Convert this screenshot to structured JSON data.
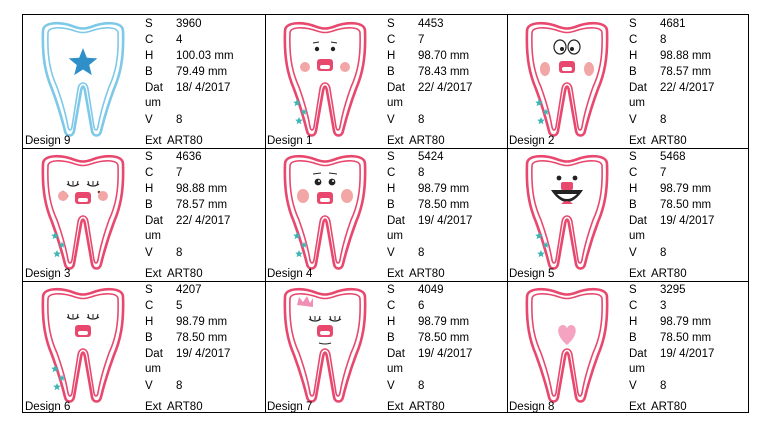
{
  "designs": [
    {
      "name": "Design 9",
      "S": "3960",
      "C": "4",
      "H": "100.03 mm",
      "B": "79.49 mm",
      "Datum": "18/ 4/2017",
      "V": "8",
      "Ext": "ART80",
      "outline": "#7ec8e8",
      "motif": "star"
    },
    {
      "name": "Design 1",
      "S": "4453",
      "C": "7",
      "H": "98.70 mm",
      "B": "78.43 mm",
      "Datum": "22/ 4/2017",
      "V": "8",
      "Ext": "ART80",
      "outline": "#e8486e",
      "motif": "face-open-eyes"
    },
    {
      "name": "Design 2",
      "S": "4681",
      "C": "8",
      "H": "98.88 mm",
      "B": "78.57 mm",
      "Datum": "22/ 4/2017",
      "V": "8",
      "Ext": "ART80",
      "outline": "#e8486e",
      "motif": "face-big-eyes"
    },
    {
      "name": "Design 3",
      "S": "4636",
      "C": "7",
      "H": "98.88 mm",
      "B": "78.57 mm",
      "Datum": "22/ 4/2017",
      "V": "8",
      "Ext": "ART80",
      "outline": "#e8486e",
      "motif": "face-closed-eyes"
    },
    {
      "name": "Design 4",
      "S": "5424",
      "C": "8",
      "H": "98.79 mm",
      "B": "78.50 mm",
      "Datum": "19/ 4/2017",
      "V": "8",
      "Ext": "ART80",
      "outline": "#e8486e",
      "motif": "face-lashes"
    },
    {
      "name": "Design 5",
      "S": "5468",
      "C": "7",
      "H": "98.79 mm",
      "B": "78.50 mm",
      "Datum": "19/ 4/2017",
      "V": "8",
      "Ext": "ART80",
      "outline": "#e8486e",
      "motif": "face-laughing"
    },
    {
      "name": "Design 6",
      "S": "4207",
      "C": "5",
      "H": "98.79 mm",
      "B": "78.50 mm",
      "Datum": "19/ 4/2017",
      "V": "8",
      "Ext": "ART80",
      "outline": "#e8486e",
      "motif": "face-sleepy"
    },
    {
      "name": "Design 7",
      "S": "4049",
      "C": "6",
      "H": "98.79 mm",
      "B": "78.50 mm",
      "Datum": "19/ 4/2017",
      "V": "8",
      "Ext": "ART80",
      "outline": "#e8486e",
      "motif": "face-crown"
    },
    {
      "name": "Design 8",
      "S": "3295",
      "C": "3",
      "H": "98.79 mm",
      "B": "78.50 mm",
      "Datum": "19/ 4/2017",
      "V": "8",
      "Ext": "ART80",
      "outline": "#e8486e",
      "motif": "heart"
    }
  ],
  "labels": {
    "S": "S",
    "C": "C",
    "H": "H",
    "B": "B",
    "Datum": "Datum",
    "V": "V",
    "Ext": "Ext"
  },
  "colors": {
    "pink": "#e8486e",
    "blue": "#7ec8e8",
    "star": "#2e8fc9",
    "teal": "#3fb6b6",
    "cheek": "#f2a6a6",
    "heart": "#f4a3c0",
    "crown": "#f08fb5"
  }
}
